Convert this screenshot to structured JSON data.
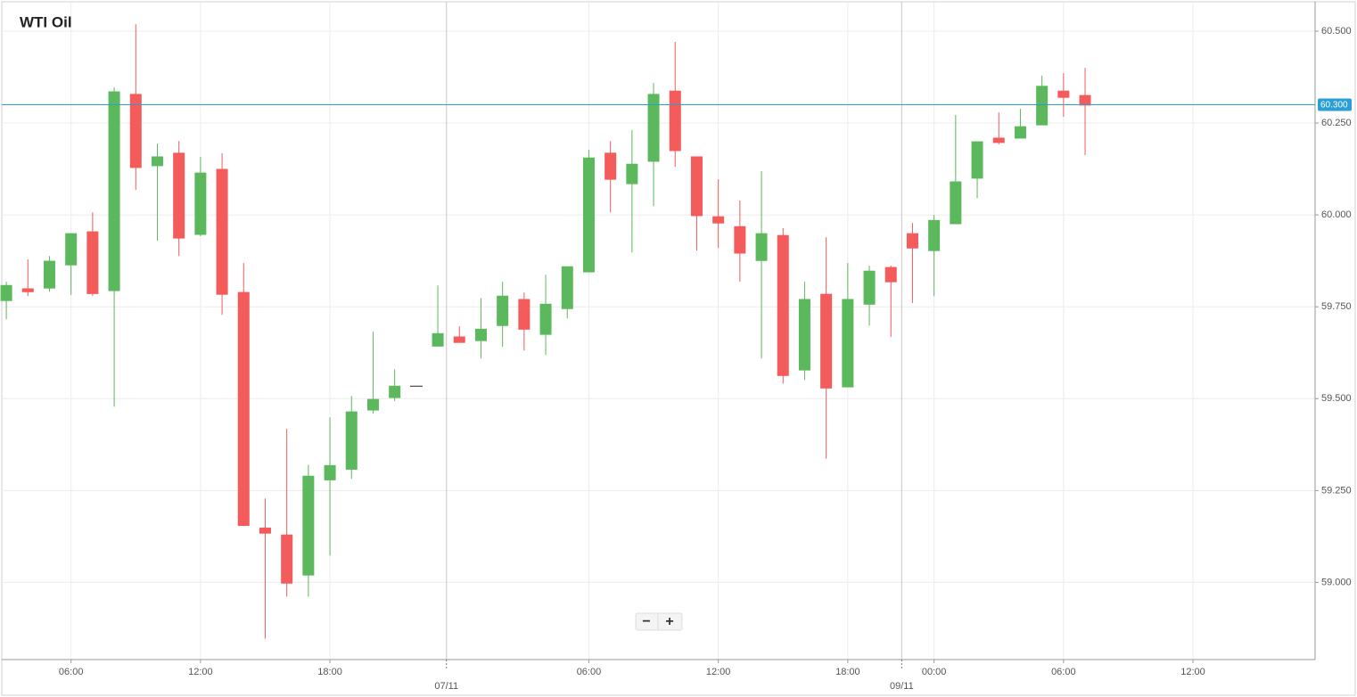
{
  "chart_data": {
    "type": "candlestick",
    "title": "WTI Oil",
    "x": [
      0,
      1,
      2,
      3,
      4,
      5,
      6,
      7,
      8,
      9,
      10,
      11,
      12,
      13,
      14,
      15,
      16,
      17,
      18,
      19,
      20,
      21,
      22,
      23,
      24,
      25,
      26,
      27,
      28,
      29,
      30,
      31,
      32,
      33,
      34,
      35,
      36,
      37,
      38,
      39,
      40,
      41,
      42,
      43,
      44,
      45,
      46,
      47,
      48,
      49,
      50
    ],
    "open": [
      59.767,
      59.799,
      59.801,
      59.864,
      59.954,
      59.794,
      60.328,
      60.134,
      60.168,
      59.947,
      60.124,
      59.789,
      59.148,
      59.129,
      59.02,
      59.279,
      59.308,
      59.469,
      59.503,
      59.534,
      59.643,
      59.668,
      59.658,
      59.699,
      59.77,
      59.675,
      59.745,
      59.845,
      60.168,
      60.085,
      60.146,
      60.337,
      60.158,
      59.995,
      59.968,
      59.876,
      59.944,
      59.578,
      59.784,
      59.532,
      59.757,
      59.857,
      59.949,
      59.903,
      59.976,
      60.1,
      60.209,
      60.209,
      60.245,
      60.337,
      60.325
    ],
    "high": [
      59.818,
      59.879,
      59.888,
      59.949,
      60.007,
      60.347,
      60.519,
      60.194,
      60.201,
      60.158,
      60.168,
      59.869,
      59.228,
      59.418,
      59.32,
      59.449,
      59.507,
      59.682,
      59.58,
      59.534,
      59.808,
      59.697,
      59.774,
      59.818,
      59.789,
      59.837,
      59.859,
      60.177,
      60.201,
      60.231,
      60.359,
      60.471,
      60.158,
      60.097,
      60.039,
      60.119,
      59.964,
      59.818,
      59.939,
      59.869,
      59.862,
      59.862,
      59.978,
      60.0,
      60.272,
      60.199,
      60.279,
      60.289,
      60.379,
      60.386,
      60.4
    ],
    "low": [
      59.716,
      59.779,
      59.791,
      59.782,
      59.779,
      59.478,
      60.068,
      59.93,
      59.888,
      59.942,
      59.728,
      59.153,
      58.847,
      58.961,
      58.961,
      59.073,
      59.282,
      59.459,
      59.493,
      59.534,
      59.643,
      59.653,
      59.609,
      59.641,
      59.631,
      59.619,
      59.718,
      59.845,
      60.007,
      59.898,
      60.024,
      60.131,
      59.903,
      59.91,
      59.818,
      59.609,
      59.541,
      59.551,
      59.337,
      59.532,
      59.699,
      59.668,
      59.76,
      59.779,
      59.976,
      60.046,
      60.192,
      60.209,
      60.245,
      60.267,
      60.163
    ],
    "close": [
      59.808,
      59.791,
      59.874,
      59.949,
      59.786,
      60.335,
      60.129,
      60.158,
      59.937,
      60.114,
      59.784,
      59.155,
      59.134,
      58.998,
      59.289,
      59.318,
      59.464,
      59.498,
      59.534,
      59.534,
      59.677,
      59.653,
      59.689,
      59.779,
      59.689,
      59.757,
      59.859,
      60.155,
      60.097,
      60.138,
      60.328,
      60.175,
      59.998,
      59.978,
      59.896,
      59.949,
      59.563,
      59.77,
      59.529,
      59.77,
      59.847,
      59.818,
      59.91,
      59.985,
      60.09,
      60.199,
      60.197,
      60.24,
      60.35,
      60.32,
      60.299
    ],
    "up_color": "#5cb85c",
    "down_color": "#f45b5b",
    "flat_color": "#222222",
    "xlim": [
      -0.21,
      60.66
    ],
    "ylim": [
      58.79,
      60.58
    ],
    "xticks": [
      {
        "value": 3,
        "label": "06:00"
      },
      {
        "value": 9,
        "label": "12:00"
      },
      {
        "value": 15,
        "label": "18:00"
      },
      {
        "value": 27,
        "label": "06:00"
      },
      {
        "value": 33,
        "label": "12:00"
      },
      {
        "value": 39,
        "label": "18:00"
      },
      {
        "value": 43,
        "label": "00:00"
      },
      {
        "value": 49,
        "label": "06:00"
      },
      {
        "value": 55,
        "label": "12:00"
      }
    ],
    "date_ticks": [
      {
        "value": 20.4,
        "label": "07/11"
      },
      {
        "value": 41.5,
        "label": "09/11"
      }
    ],
    "yticks": [
      {
        "value": 59.0,
        "label": "59.000"
      },
      {
        "value": 59.25,
        "label": "59.250"
      },
      {
        "value": 59.5,
        "label": "59.500"
      },
      {
        "value": 59.75,
        "label": "59.750"
      },
      {
        "value": 60.0,
        "label": "60.000"
      },
      {
        "value": 60.25,
        "label": "60.250"
      },
      {
        "value": 60.5,
        "label": "60.500"
      }
    ],
    "last_price": {
      "value": 60.3,
      "label": "60.300"
    },
    "last_price_color": "#2a9fd6",
    "grid": true,
    "controls": [
      "−",
      "+"
    ]
  }
}
